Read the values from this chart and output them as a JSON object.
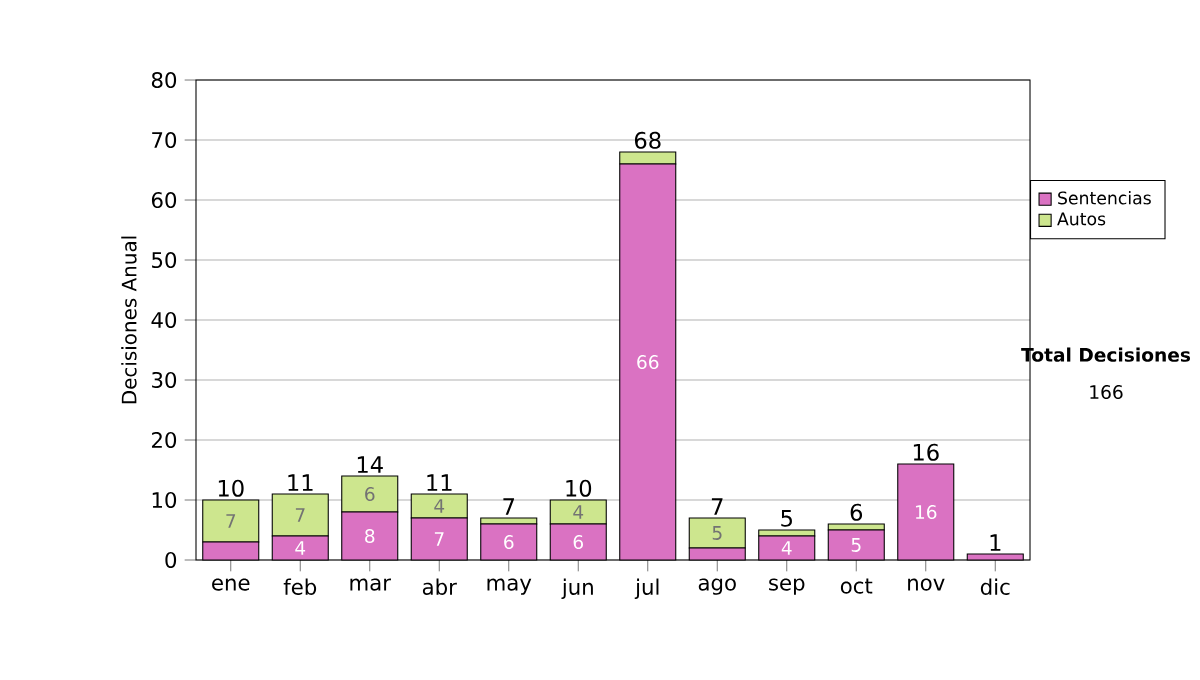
{
  "chart_data": {
    "type": "bar",
    "stacked": true,
    "ylabel": "Decisiones Anual",
    "categories": [
      "ene",
      "feb",
      "mar",
      "abr",
      "may",
      "jun",
      "jul",
      "ago",
      "sep",
      "oct",
      "nov",
      "dic"
    ],
    "series": [
      {
        "name": "Sentencias",
        "color": "#da72c2",
        "values": [
          3,
          4,
          8,
          7,
          6,
          6,
          66,
          2,
          4,
          5,
          16,
          1
        ],
        "value_labels": [
          null,
          "4",
          "8",
          "7",
          "6",
          "6",
          "66",
          null,
          "4",
          "5",
          "16",
          null
        ]
      },
      {
        "name": "Autos",
        "color": "#cde68e",
        "values": [
          7,
          7,
          6,
          4,
          1,
          4,
          2,
          5,
          1,
          1,
          0,
          0
        ],
        "value_labels": [
          "7",
          "7",
          "6",
          "4",
          null,
          "4",
          null,
          "5",
          null,
          null,
          null,
          null
        ]
      }
    ],
    "totals": [
      "10",
      "11",
      "14",
      "11",
      "7",
      "10",
      "68",
      "7",
      "5",
      "6",
      "16",
      "1"
    ],
    "ylim": [
      0,
      80
    ],
    "yticks": [
      0,
      10,
      20,
      30,
      40,
      50,
      60,
      70,
      80
    ],
    "grid": "y",
    "legend": "right",
    "annotations": [
      "Total Decisiones",
      "166"
    ]
  }
}
